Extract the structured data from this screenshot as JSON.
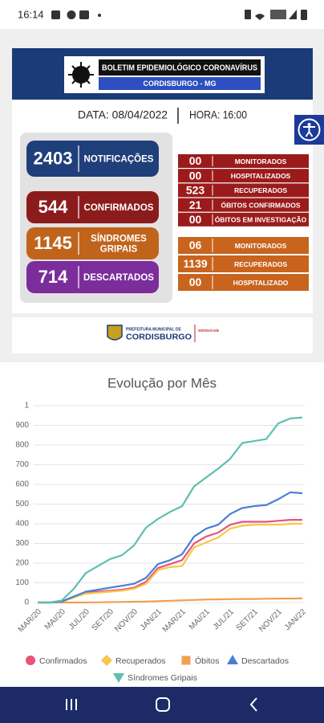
{
  "status_bar": {
    "time": "16:14"
  },
  "bulletin": {
    "title": "BOLETIM EPIDEMIOLÓGICO CORONAVÍRUS",
    "location": "CORDISBURGO - MG",
    "date": "DATA: 08/04/2022",
    "hour": "HORA: 16:00",
    "summary": [
      {
        "value": "2403",
        "label": [
          "NOTIFICAÇÕES"
        ]
      },
      {
        "value": "544",
        "label": [
          "CONFIRMADOS"
        ]
      },
      {
        "value": "1145",
        "label": [
          "SÍNDROMES",
          "GRIPAIS"
        ]
      },
      {
        "value": "714",
        "label": [
          "DESCARTADOS"
        ]
      }
    ],
    "confirmed_detail": [
      [
        "00",
        "MONITORADOS"
      ],
      [
        "00",
        "HOSPITALIZADOS"
      ],
      [
        "523",
        "RECUPERADOS"
      ],
      [
        "21",
        "ÓBITOS CONFIRMADOS"
      ],
      [
        "00",
        "ÓBITOS EM INVESTIGAÇÃO"
      ]
    ],
    "flu_detail": [
      [
        "06",
        "MONITORADOS"
      ],
      [
        "1139",
        "RECUPERADOS"
      ],
      [
        "00",
        "HOSPITALIZADO"
      ]
    ],
    "footer": {
      "line1": "PREFEITURA MUNICIPAL DE",
      "line2": "CORDISBURGO",
      "line3": "SECRETARIA DE SAÚDE"
    }
  },
  "chart_data": {
    "type": "line",
    "title": "Evolução por Mês",
    "categories": [
      "MAR/20",
      null,
      "MAI/20",
      null,
      "JUL/20",
      null,
      "SET/20",
      null,
      "NOV/20",
      null,
      "JAN/21",
      null,
      "MAR/21",
      null,
      "MAI/21",
      null,
      "JUL/21",
      null,
      "SET/21",
      null,
      "NOV/21",
      null,
      "JAN/22"
    ],
    "ylim": [
      0,
      1000
    ],
    "yticks": [
      0,
      100,
      200,
      300,
      400,
      500,
      600,
      700,
      800,
      900,
      {
        "value": 1000,
        "label": "1"
      }
    ],
    "grid": true,
    "series": [
      {
        "name": "Confirmados",
        "color": "#e8547a",
        "marker": "circle",
        "values": [
          0,
          0,
          5,
          30,
          50,
          55,
          60,
          65,
          75,
          105,
          175,
          195,
          215,
          300,
          335,
          355,
          395,
          410,
          410,
          410,
          415,
          420,
          420
        ]
      },
      {
        "name": "Recuperados",
        "color": "#f5c84b",
        "marker": "diamond",
        "values": [
          0,
          0,
          5,
          25,
          45,
          50,
          55,
          60,
          70,
          95,
          165,
          180,
          185,
          280,
          305,
          330,
          375,
          390,
          395,
          395,
          395,
          400,
          400
        ]
      },
      {
        "name": "Óbitos",
        "color": "#f0a050",
        "marker": "square",
        "values": [
          0,
          0,
          0,
          0,
          0,
          1,
          2,
          3,
          4,
          5,
          7,
          9,
          11,
          13,
          15,
          16,
          17,
          18,
          18,
          19,
          20,
          20,
          21
        ]
      },
      {
        "name": "Descartados",
        "color": "#4a7fd4",
        "marker": "triangle",
        "values": [
          0,
          0,
          5,
          30,
          55,
          65,
          75,
          85,
          95,
          125,
          195,
          215,
          245,
          335,
          375,
          395,
          450,
          480,
          490,
          495,
          525,
          560,
          555
        ]
      },
      {
        "name": "Síndromes Gripais",
        "color": "#5fbfae",
        "marker": "triangle-down",
        "values": [
          0,
          0,
          10,
          70,
          150,
          185,
          220,
          240,
          290,
          380,
          425,
          460,
          490,
          590,
          635,
          680,
          730,
          810,
          820,
          830,
          910,
          935,
          940
        ]
      }
    ]
  }
}
